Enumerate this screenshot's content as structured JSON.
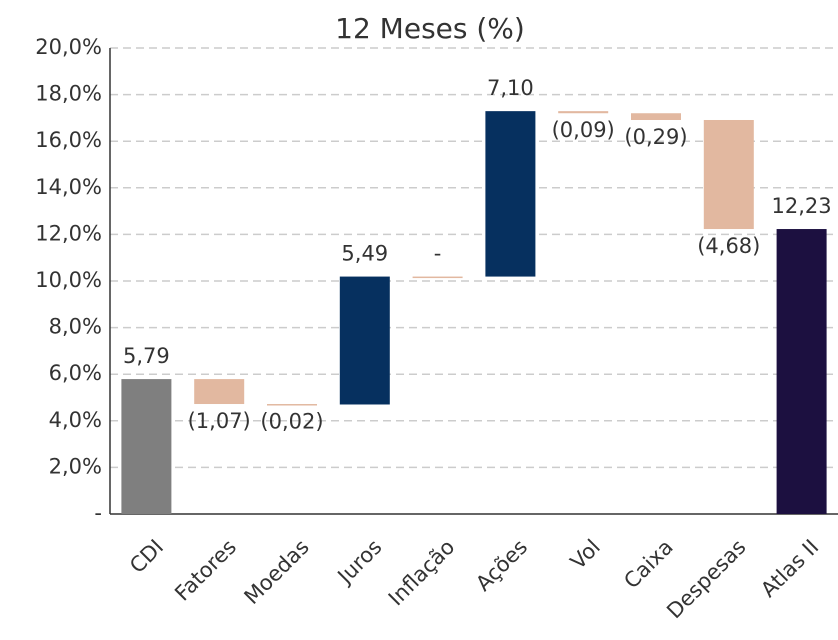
{
  "chart_data": {
    "type": "waterfall",
    "title": "12 Meses (%)",
    "categories": [
      "CDI",
      "Fatores",
      "Moedas",
      "Juros",
      "Inflação",
      "Ações",
      "Vol",
      "Caixa",
      "Despesas",
      "Atlas II"
    ],
    "values": [
      5.79,
      -1.07,
      -0.02,
      5.49,
      0,
      7.1,
      -0.09,
      -0.29,
      -4.68,
      12.23
    ],
    "value_labels": [
      "5,79",
      "(1,07)",
      "(0,02)",
      "5,49",
      "-",
      "7,10",
      "(0,09)",
      "(0,29)",
      "(4,68)",
      "12,23"
    ],
    "bar_types": [
      "total",
      "delta",
      "delta",
      "delta",
      "delta",
      "delta",
      "delta",
      "delta",
      "delta",
      "total"
    ],
    "colors": [
      "#7f7f7f",
      "#e2b8a0",
      "#e2b8a0",
      "#06305f",
      "#e2b8a0",
      "#06305f",
      "#e2b8a0",
      "#e2b8a0",
      "#e2b8a0",
      "#1c1040"
    ],
    "ylim": [
      0,
      20
    ],
    "yticks": [
      {
        "value": 0,
        "label": "-"
      },
      {
        "value": 2,
        "label": "2,0%"
      },
      {
        "value": 4,
        "label": "4,0%"
      },
      {
        "value": 6,
        "label": "6,0%"
      },
      {
        "value": 8,
        "label": "8,0%"
      },
      {
        "value": 10,
        "label": "10,0%"
      },
      {
        "value": 12,
        "label": "12,0%"
      },
      {
        "value": 14,
        "label": "14,0%"
      },
      {
        "value": 16,
        "label": "16,0%"
      },
      {
        "value": 18,
        "label": "18,0%"
      },
      {
        "value": 20,
        "label": "20,0%"
      }
    ],
    "grid": true
  }
}
